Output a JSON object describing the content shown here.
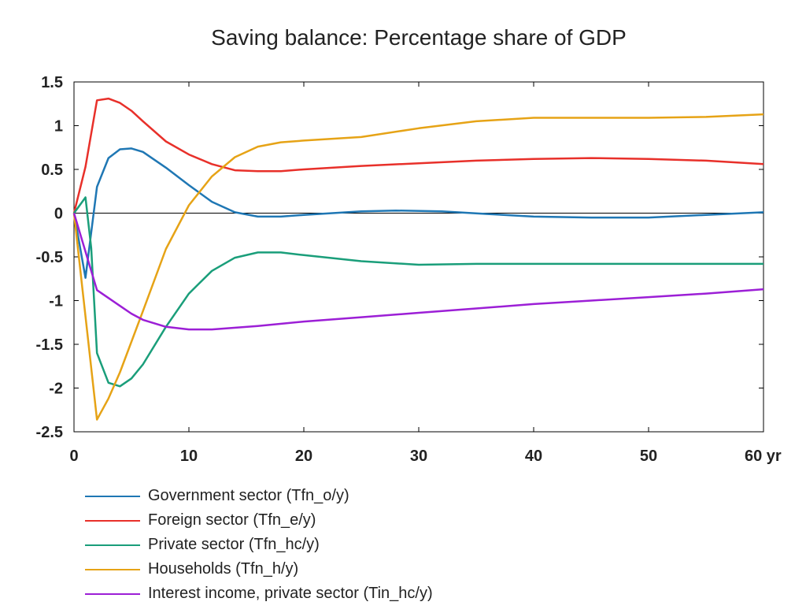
{
  "chart_data": {
    "type": "line",
    "title": "Saving balance: Percentage share of GDP",
    "xlabel": "",
    "ylabel": "",
    "xlim": [
      0,
      60
    ],
    "ylim": [
      -2.5,
      1.5
    ],
    "x_ticks": [
      0,
      10,
      20,
      30,
      40,
      50,
      60
    ],
    "x_tick_labels": [
      "0",
      "10",
      "20",
      "30",
      "40",
      "50",
      "60 yr"
    ],
    "y_ticks": [
      1.5,
      1,
      0.5,
      0,
      -0.5,
      -1,
      -1.5,
      -2,
      -2.5
    ],
    "y_tick_labels": [
      "1.5",
      "1",
      "0.5",
      "0",
      "-0.5",
      "-1",
      "-1.5",
      "-2",
      "-2.5"
    ],
    "grid": false,
    "zero_line": true,
    "legend_position": "bottom",
    "series": [
      {
        "name": "Government sector (Tfn_o/y)",
        "color": "#1f77b4",
        "points": [
          [
            0,
            0
          ],
          [
            1,
            -0.74
          ],
          [
            2,
            0.3
          ],
          [
            3,
            0.63
          ],
          [
            4,
            0.73
          ],
          [
            5,
            0.74
          ],
          [
            6,
            0.7
          ],
          [
            8,
            0.52
          ],
          [
            10,
            0.32
          ],
          [
            12,
            0.13
          ],
          [
            14,
            0.01
          ],
          [
            16,
            -0.04
          ],
          [
            18,
            -0.04
          ],
          [
            20,
            -0.02
          ],
          [
            25,
            0.02
          ],
          [
            28,
            0.03
          ],
          [
            32,
            0.02
          ],
          [
            36,
            -0.01
          ],
          [
            40,
            -0.04
          ],
          [
            45,
            -0.05
          ],
          [
            50,
            -0.05
          ],
          [
            55,
            -0.02
          ],
          [
            60,
            0.01
          ]
        ]
      },
      {
        "name": "Foreign sector (Tfn_e/y)",
        "color": "#e8302a",
        "points": [
          [
            0,
            0
          ],
          [
            1,
            0.53
          ],
          [
            2,
            1.29
          ],
          [
            3,
            1.31
          ],
          [
            4,
            1.26
          ],
          [
            5,
            1.17
          ],
          [
            6,
            1.05
          ],
          [
            8,
            0.82
          ],
          [
            10,
            0.67
          ],
          [
            12,
            0.56
          ],
          [
            14,
            0.49
          ],
          [
            16,
            0.48
          ],
          [
            18,
            0.48
          ],
          [
            20,
            0.5
          ],
          [
            25,
            0.54
          ],
          [
            30,
            0.57
          ],
          [
            35,
            0.6
          ],
          [
            40,
            0.62
          ],
          [
            45,
            0.63
          ],
          [
            50,
            0.62
          ],
          [
            55,
            0.6
          ],
          [
            60,
            0.56
          ]
        ]
      },
      {
        "name": "Private sector (Tfn_hc/y)",
        "color": "#1a9e7a",
        "points": [
          [
            0,
            0
          ],
          [
            1,
            0.18
          ],
          [
            1.5,
            -0.4
          ],
          [
            2,
            -1.6
          ],
          [
            3,
            -1.94
          ],
          [
            4,
            -1.98
          ],
          [
            5,
            -1.89
          ],
          [
            6,
            -1.73
          ],
          [
            8,
            -1.3
          ],
          [
            10,
            -0.92
          ],
          [
            12,
            -0.66
          ],
          [
            14,
            -0.51
          ],
          [
            16,
            -0.45
          ],
          [
            18,
            -0.45
          ],
          [
            20,
            -0.48
          ],
          [
            25,
            -0.55
          ],
          [
            30,
            -0.59
          ],
          [
            35,
            -0.58
          ],
          [
            40,
            -0.58
          ],
          [
            50,
            -0.58
          ],
          [
            60,
            -0.58
          ]
        ]
      },
      {
        "name": "Households (Tfn_h/y)",
        "color": "#e6a316",
        "points": [
          [
            0,
            0
          ],
          [
            2,
            -2.36
          ],
          [
            3,
            -2.12
          ],
          [
            4,
            -1.82
          ],
          [
            6,
            -1.12
          ],
          [
            8,
            -0.41
          ],
          [
            10,
            0.09
          ],
          [
            12,
            0.42
          ],
          [
            14,
            0.64
          ],
          [
            16,
            0.76
          ],
          [
            18,
            0.81
          ],
          [
            20,
            0.83
          ],
          [
            25,
            0.87
          ],
          [
            30,
            0.97
          ],
          [
            35,
            1.05
          ],
          [
            40,
            1.09
          ],
          [
            45,
            1.09
          ],
          [
            50,
            1.09
          ],
          [
            55,
            1.1
          ],
          [
            60,
            1.13
          ]
        ]
      },
      {
        "name": "Interest income, private sector (Tin_hc/y)",
        "color": "#9c1fd6",
        "points": [
          [
            0,
            0
          ],
          [
            2,
            -0.88
          ],
          [
            3,
            -0.97
          ],
          [
            4,
            -1.06
          ],
          [
            5,
            -1.15
          ],
          [
            6,
            -1.22
          ],
          [
            8,
            -1.3
          ],
          [
            10,
            -1.33
          ],
          [
            12,
            -1.33
          ],
          [
            16,
            -1.29
          ],
          [
            20,
            -1.24
          ],
          [
            25,
            -1.19
          ],
          [
            30,
            -1.14
          ],
          [
            35,
            -1.09
          ],
          [
            40,
            -1.04
          ],
          [
            45,
            -1.0
          ],
          [
            50,
            -0.96
          ],
          [
            55,
            -0.92
          ],
          [
            60,
            -0.87
          ]
        ]
      }
    ]
  }
}
